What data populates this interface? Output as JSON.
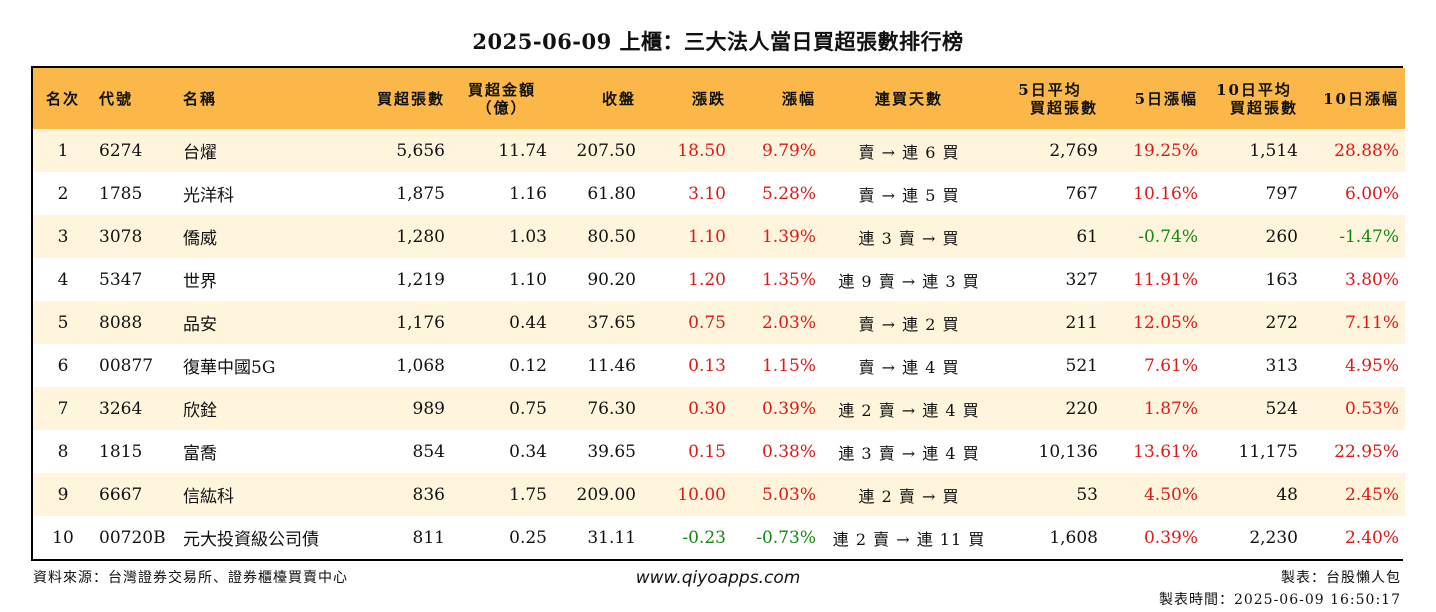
{
  "title": "2025-06-09 上櫃：三大法人當日買超張數排行榜",
  "headers": {
    "rank": "名次",
    "code": "代號",
    "name": "名稱",
    "net_buy": "買超張數",
    "amount_line1": "買超金額",
    "amount_line2": "（億）",
    "close": "收盤",
    "change": "漲跌",
    "pct": "漲幅",
    "streak": "連買天數",
    "avg5_line1": "5日平均",
    "avg5_line2": "買超張數",
    "pct5": "5日漲幅",
    "avg10_line1": "10日平均",
    "avg10_line2": "買超張數",
    "pct10": "10日漲幅"
  },
  "colors": {
    "header_bg": "#fbb848",
    "stripe_bg": "#fef5dc",
    "up": "#e01818",
    "down": "#118a11"
  },
  "rows": [
    {
      "rank": "1",
      "code": "6274",
      "name": "台燿",
      "net_buy": "5,656",
      "amount": "11.74",
      "close": "207.50",
      "change": "18.50",
      "pct": "9.79%",
      "streak": "賣 → 連 6 買",
      "avg5": "2,769",
      "pct5": "19.25%",
      "avg10": "1,514",
      "pct10": "28.88%"
    },
    {
      "rank": "2",
      "code": "1785",
      "name": "光洋科",
      "net_buy": "1,875",
      "amount": "1.16",
      "close": "61.80",
      "change": "3.10",
      "pct": "5.28%",
      "streak": "賣 → 連 5 買",
      "avg5": "767",
      "pct5": "10.16%",
      "avg10": "797",
      "pct10": "6.00%"
    },
    {
      "rank": "3",
      "code": "3078",
      "name": "僑威",
      "net_buy": "1,280",
      "amount": "1.03",
      "close": "80.50",
      "change": "1.10",
      "pct": "1.39%",
      "streak": "連 3 賣 → 買",
      "avg5": "61",
      "pct5": "-0.74%",
      "avg10": "260",
      "pct10": "-1.47%"
    },
    {
      "rank": "4",
      "code": "5347",
      "name": "世界",
      "net_buy": "1,219",
      "amount": "1.10",
      "close": "90.20",
      "change": "1.20",
      "pct": "1.35%",
      "streak": "連 9 賣 → 連 3 買",
      "avg5": "327",
      "pct5": "11.91%",
      "avg10": "163",
      "pct10": "3.80%"
    },
    {
      "rank": "5",
      "code": "8088",
      "name": "品安",
      "net_buy": "1,176",
      "amount": "0.44",
      "close": "37.65",
      "change": "0.75",
      "pct": "2.03%",
      "streak": "賣 → 連 2 買",
      "avg5": "211",
      "pct5": "12.05%",
      "avg10": "272",
      "pct10": "7.11%"
    },
    {
      "rank": "6",
      "code": "00877",
      "name": "復華中國5G",
      "net_buy": "1,068",
      "amount": "0.12",
      "close": "11.46",
      "change": "0.13",
      "pct": "1.15%",
      "streak": "賣 → 連 4 買",
      "avg5": "521",
      "pct5": "7.61%",
      "avg10": "313",
      "pct10": "4.95%"
    },
    {
      "rank": "7",
      "code": "3264",
      "name": "欣銓",
      "net_buy": "989",
      "amount": "0.75",
      "close": "76.30",
      "change": "0.30",
      "pct": "0.39%",
      "streak": "連 2 賣 → 連 4 買",
      "avg5": "220",
      "pct5": "1.87%",
      "avg10": "524",
      "pct10": "0.53%"
    },
    {
      "rank": "8",
      "code": "1815",
      "name": "富喬",
      "net_buy": "854",
      "amount": "0.34",
      "close": "39.65",
      "change": "0.15",
      "pct": "0.38%",
      "streak": "連 3 賣 → 連 4 買",
      "avg5": "10,136",
      "pct5": "13.61%",
      "avg10": "11,175",
      "pct10": "22.95%"
    },
    {
      "rank": "9",
      "code": "6667",
      "name": "信紘科",
      "net_buy": "836",
      "amount": "1.75",
      "close": "209.00",
      "change": "10.00",
      "pct": "5.03%",
      "streak": "連 2 賣 → 買",
      "avg5": "53",
      "pct5": "4.50%",
      "avg10": "48",
      "pct10": "2.45%"
    },
    {
      "rank": "10",
      "code": "00720B",
      "name": "元大投資級公司債",
      "net_buy": "811",
      "amount": "0.25",
      "close": "31.11",
      "change": "-0.23",
      "pct": "-0.73%",
      "streak": "連 2 賣 → 連 11 買",
      "avg5": "1,608",
      "pct5": "0.39%",
      "avg10": "2,230",
      "pct10": "2.40%"
    }
  ],
  "footer": {
    "source": "資料來源：台灣證券交易所、證券櫃檯買賣中心",
    "website": "www.qiyoapps.com",
    "maker": "製表：台股懶人包",
    "time": "製表時間：2025-06-09 16:50:17"
  }
}
